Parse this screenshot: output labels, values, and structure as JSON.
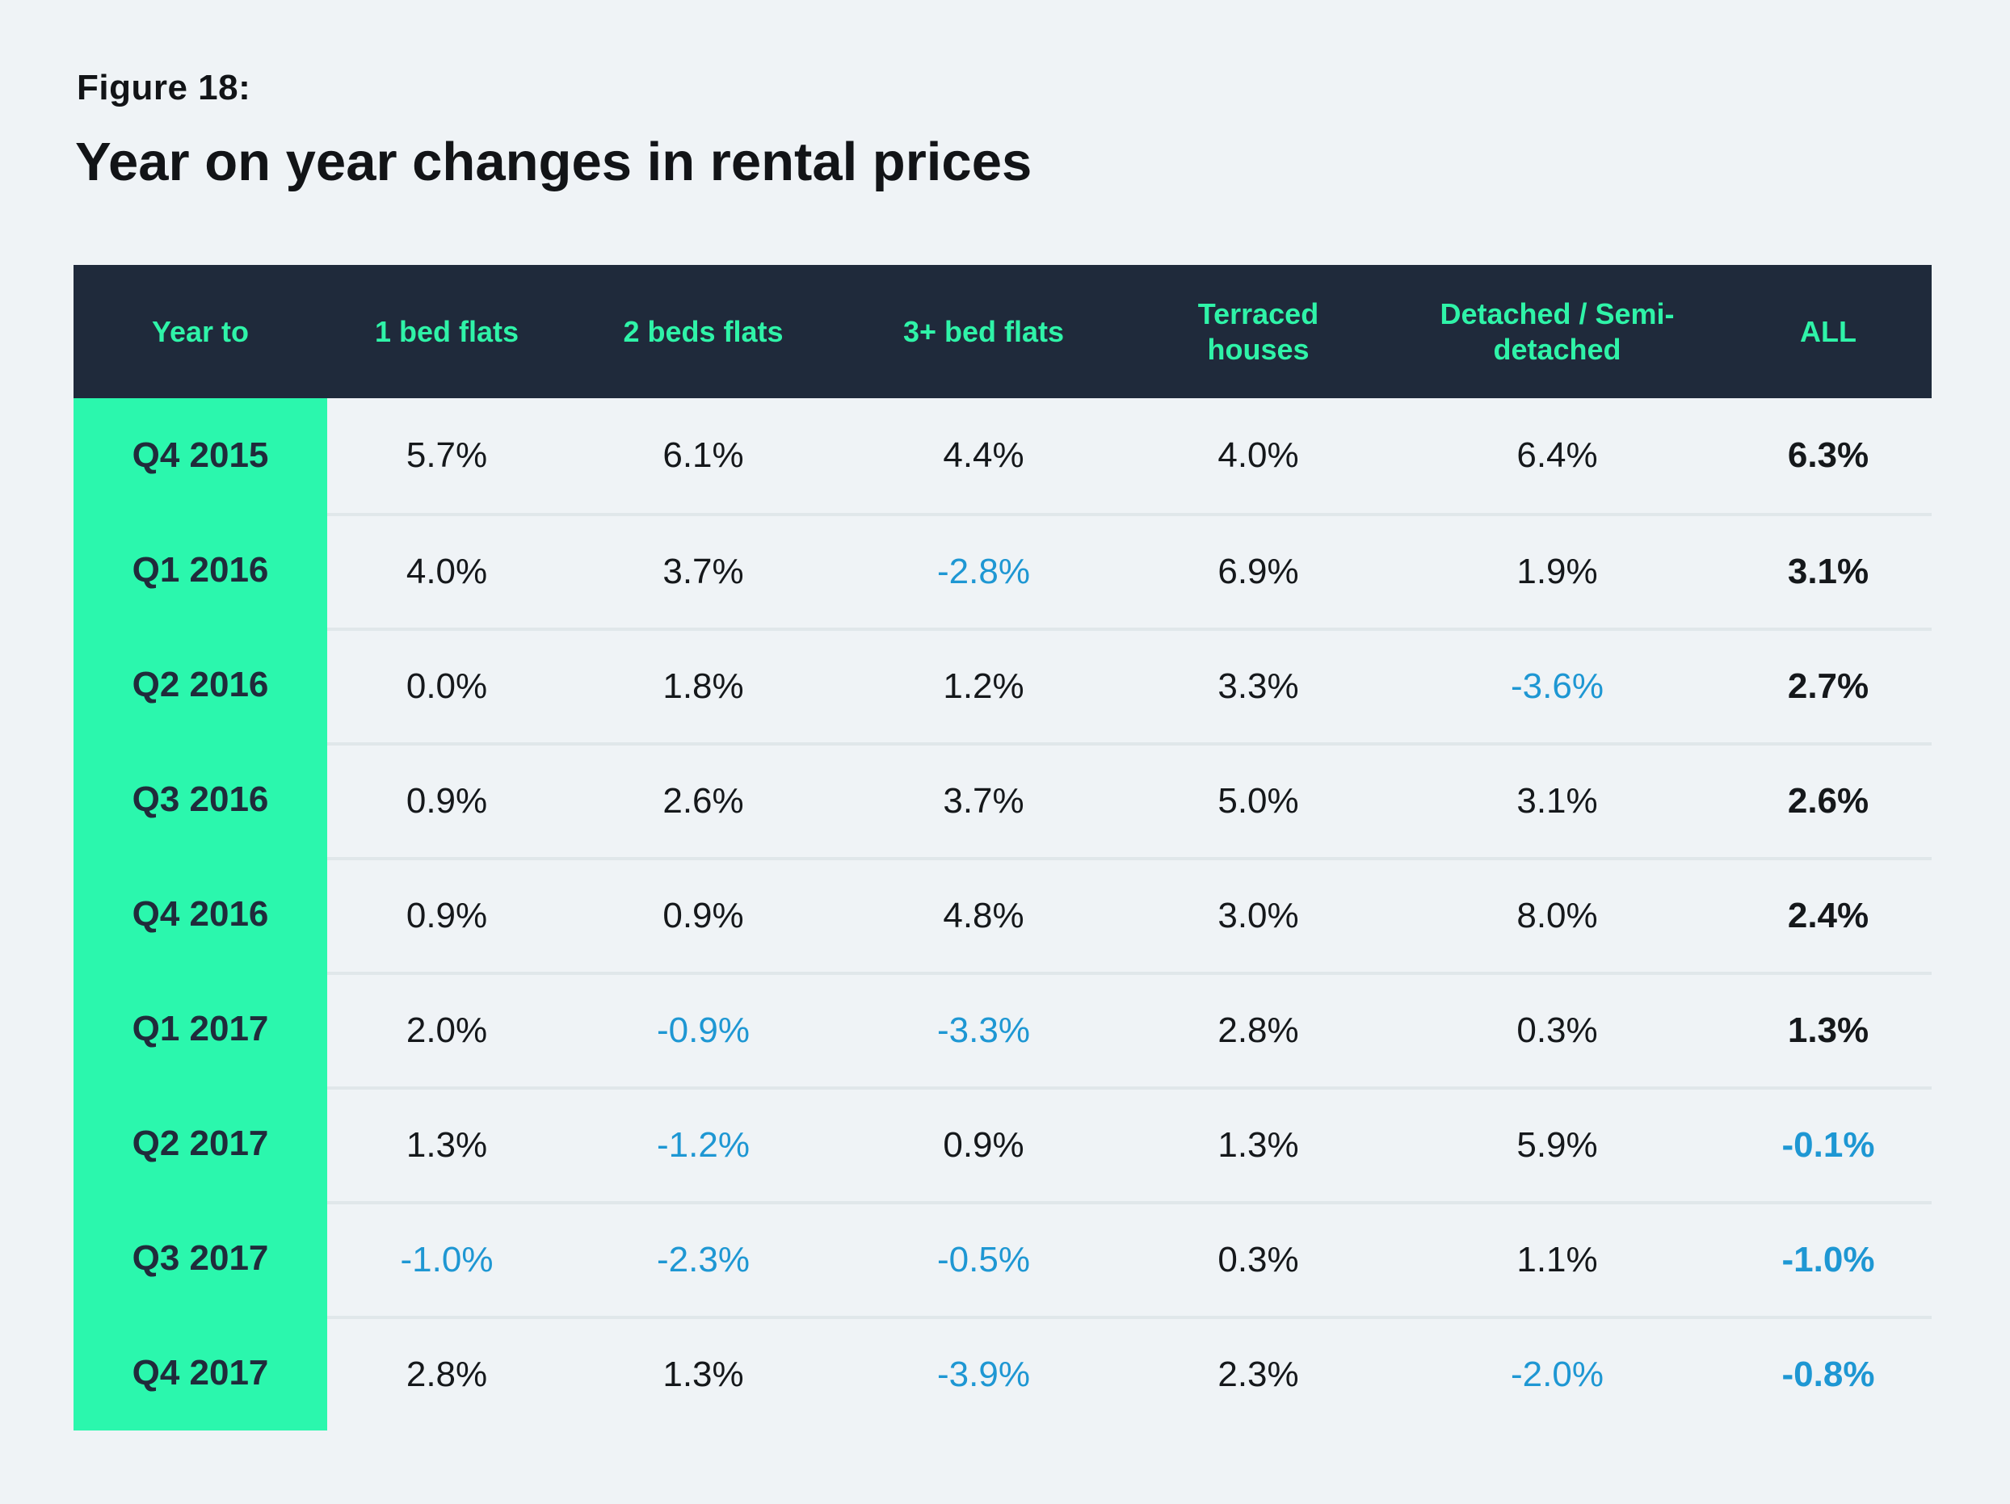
{
  "figure": {
    "label": "Figure 18:",
    "title": "Year on year changes in rental prices"
  },
  "chart_data": {
    "type": "table",
    "columns": [
      "Year to",
      "1 bed flats",
      "2 beds flats",
      "3+ bed flats",
      "Terraced houses",
      "Detached / Semi-detached",
      "ALL"
    ],
    "rows": [
      {
        "label": "Q4 2015",
        "values": [
          "5.7%",
          "6.1%",
          "4.4%",
          "4.0%",
          "6.4%",
          "6.3%"
        ]
      },
      {
        "label": "Q1 2016",
        "values": [
          "4.0%",
          "3.7%",
          "-2.8%",
          "6.9%",
          "1.9%",
          "3.1%"
        ]
      },
      {
        "label": "Q2 2016",
        "values": [
          "0.0%",
          "1.8%",
          "1.2%",
          "3.3%",
          "-3.6%",
          "2.7%"
        ]
      },
      {
        "label": "Q3 2016",
        "values": [
          "0.9%",
          "2.6%",
          "3.7%",
          "5.0%",
          "3.1%",
          "2.6%"
        ]
      },
      {
        "label": "Q4 2016",
        "values": [
          "0.9%",
          "0.9%",
          "4.8%",
          "3.0%",
          "8.0%",
          "2.4%"
        ]
      },
      {
        "label": "Q1 2017",
        "values": [
          "2.0%",
          "-0.9%",
          "-3.3%",
          "2.8%",
          "0.3%",
          "1.3%"
        ]
      },
      {
        "label": "Q2 2017",
        "values": [
          "1.3%",
          "-1.2%",
          "0.9%",
          "1.3%",
          "5.9%",
          "-0.1%"
        ]
      },
      {
        "label": "Q3 2017",
        "values": [
          "-1.0%",
          "-2.3%",
          "-0.5%",
          "0.3%",
          "1.1%",
          "-1.0%"
        ]
      },
      {
        "label": "Q4 2017",
        "values": [
          "2.8%",
          "1.3%",
          "-3.9%",
          "2.3%",
          "-2.0%",
          "-0.8%"
        ]
      }
    ],
    "styling_notes": "negative values rendered blue; ALL column rendered bold",
    "colors": {
      "page_background": "#EFF3F6",
      "header_background": "#1F2A3B",
      "header_text": "#2FF3A8",
      "row_label_background": "#2BF7AD",
      "row_label_text": "#202B3B",
      "value_text": "#15181B",
      "negative_value_text": "#1E97D3",
      "row_divider": "#E0E7EA"
    }
  }
}
